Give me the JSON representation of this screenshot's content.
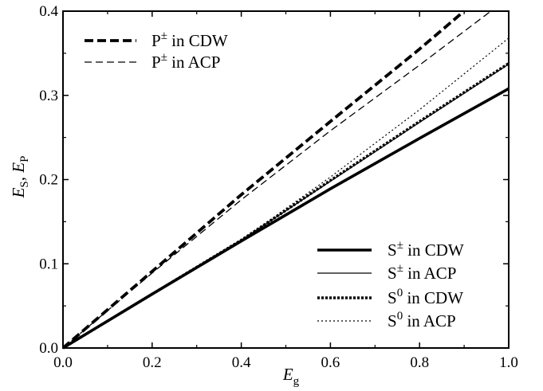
{
  "chart_data": {
    "type": "line",
    "xlabel": "E",
    "xlabel_sub": "g",
    "ylabel_parts": [
      {
        "text": "E",
        "sub": "S"
      },
      {
        "text": ", ",
        "sub": ""
      },
      {
        "text": "E",
        "sub": "P"
      }
    ],
    "xlim": [
      0.0,
      1.0
    ],
    "ylim": [
      0.0,
      0.4
    ],
    "xticks": [
      0.0,
      0.2,
      0.4,
      0.6,
      0.8,
      1.0
    ],
    "xtick_labels": [
      "0.0",
      "0.2",
      "0.4",
      "0.6",
      "0.8",
      "1.0"
    ],
    "yticks": [
      0.0,
      0.1,
      0.2,
      0.3,
      0.4
    ],
    "ytick_labels": [
      "0.0",
      "0.1",
      "0.2",
      "0.3",
      "0.4"
    ],
    "grid": false,
    "legends": [
      {
        "position": "top-left",
        "entries": [
          "P± in CDW",
          "P± in ACP"
        ]
      },
      {
        "position": "bottom-right",
        "entries": [
          "S± in CDW",
          "S± in ACP",
          "S0 in CDW",
          "S0 in ACP"
        ]
      }
    ],
    "series": [
      {
        "name": "P± in CDW",
        "label_base": "P",
        "label_sup": "±",
        "label_rest": " in CDW",
        "style": "dashed-thick",
        "x": [
          0.0,
          0.2,
          0.4,
          0.6,
          0.8,
          0.9
        ],
        "y": [
          0.0,
          0.091,
          0.182,
          0.269,
          0.355,
          0.4
        ]
      },
      {
        "name": "P± in ACP",
        "label_base": "P",
        "label_sup": "±",
        "label_rest": " in ACP",
        "style": "dashed-thin",
        "x": [
          0.0,
          0.2,
          0.4,
          0.6,
          0.8,
          0.96
        ],
        "y": [
          0.0,
          0.089,
          0.176,
          0.258,
          0.336,
          0.4
        ]
      },
      {
        "name": "S± in CDW",
        "label_base": "S",
        "label_sup": "±",
        "label_rest": " in CDW",
        "style": "solid-thick",
        "x": [
          0.0,
          0.2,
          0.4,
          0.6,
          0.8,
          1.0
        ],
        "y": [
          0.0,
          0.064,
          0.127,
          0.189,
          0.249,
          0.308
        ]
      },
      {
        "name": "S± in ACP",
        "label_base": "S",
        "label_sup": "±",
        "label_rest": " in ACP",
        "style": "solid-thin",
        "x": [
          0.0,
          0.2,
          0.4,
          0.6,
          0.8,
          1.0
        ],
        "y": [
          0.0,
          0.064,
          0.128,
          0.198,
          0.268,
          0.337
        ]
      },
      {
        "name": "S0 in CDW",
        "label_base": "S",
        "label_sup": "0",
        "label_rest": " in CDW",
        "style": "dotted-thick",
        "x": [
          0.0,
          0.2,
          0.4,
          0.6,
          0.8,
          1.0
        ],
        "y": [
          0.0,
          0.064,
          0.128,
          0.199,
          0.269,
          0.338
        ]
      },
      {
        "name": "S0 in ACP",
        "label_base": "S",
        "label_sup": "0",
        "label_rest": " in ACP",
        "style": "dotted-thin",
        "x": [
          0.0,
          0.2,
          0.4,
          0.6,
          0.8,
          1.0
        ],
        "y": [
          0.0,
          0.064,
          0.128,
          0.203,
          0.283,
          0.368
        ]
      }
    ]
  }
}
